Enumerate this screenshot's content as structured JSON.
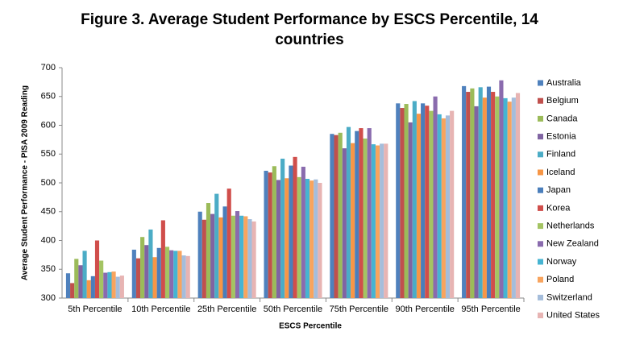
{
  "chart_data": {
    "type": "bar",
    "title": "Figure 3. Average Student Performance by ESCS Percentile, 14 countries",
    "x_label": "ESCS Percentile",
    "y_label": "Average Student Performance - PISA 2009 Reading",
    "categories": [
      "5th Percentile",
      "10th Percentile",
      "25th Percentile",
      "50th Percentile",
      "75th Percentile",
      "90th Percentile",
      "95th Percentile"
    ],
    "series": [
      {
        "name": "Australia",
        "color": "#4F81BD",
        "values": [
          343,
          384,
          450,
          521,
          585,
          638,
          668
        ]
      },
      {
        "name": "Belgium",
        "color": "#C0504D",
        "values": [
          326,
          369,
          436,
          518,
          583,
          630,
          658
        ]
      },
      {
        "name": "Canada",
        "color": "#9BBB59",
        "values": [
          368,
          406,
          465,
          529,
          587,
          637,
          664
        ]
      },
      {
        "name": "Estonia",
        "color": "#8064A2",
        "values": [
          357,
          392,
          446,
          505,
          560,
          605,
          633
        ]
      },
      {
        "name": "Finland",
        "color": "#4BACC6",
        "values": [
          382,
          419,
          481,
          542,
          597,
          642,
          666
        ]
      },
      {
        "name": "Iceland",
        "color": "#F79646",
        "values": [
          331,
          371,
          440,
          508,
          569,
          620,
          648
        ]
      },
      {
        "name": "Japan",
        "color": "#4A7EBB",
        "values": [
          338,
          387,
          459,
          530,
          590,
          638,
          667
        ]
      },
      {
        "name": "Korea",
        "color": "#D04E4B",
        "values": [
          400,
          435,
          490,
          545,
          595,
          634,
          658
        ]
      },
      {
        "name": "Netherlands",
        "color": "#A4C463",
        "values": [
          365,
          389,
          443,
          510,
          577,
          625,
          650
        ]
      },
      {
        "name": "New Zealand",
        "color": "#8A6BAE",
        "values": [
          344,
          383,
          451,
          528,
          595,
          650,
          678
        ]
      },
      {
        "name": "Norway",
        "color": "#46B4D2",
        "values": [
          345,
          382,
          443,
          507,
          567,
          619,
          647
        ]
      },
      {
        "name": "Poland",
        "color": "#F8A45E",
        "values": [
          346,
          382,
          442,
          504,
          565,
          612,
          641
        ]
      },
      {
        "name": "Switzerland",
        "color": "#A5BDDB",
        "values": [
          337,
          374,
          437,
          506,
          568,
          617,
          648
        ]
      },
      {
        "name": "United States",
        "color": "#E7B4B3",
        "values": [
          339,
          373,
          433,
          500,
          568,
          625,
          656
        ]
      }
    ],
    "ylim": [
      300,
      700
    ],
    "yticks": [
      300,
      350,
      400,
      450,
      500,
      550,
      600,
      650,
      700
    ],
    "grid": false,
    "legend": "right"
  }
}
